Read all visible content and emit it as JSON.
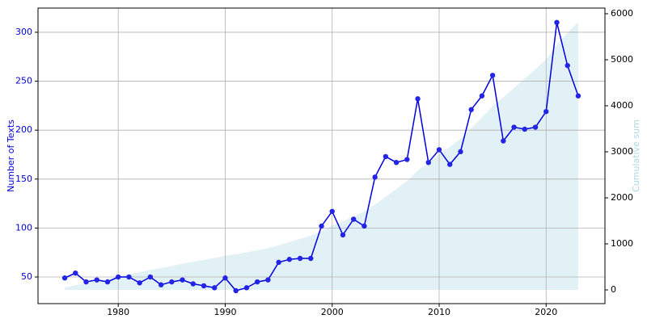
{
  "chart_data": {
    "type": "line",
    "ylabel": "Number of Texts",
    "y2label": "Cumulative sum",
    "x": [
      1975,
      1976,
      1977,
      1978,
      1979,
      1980,
      1981,
      1982,
      1983,
      1984,
      1985,
      1986,
      1987,
      1988,
      1989,
      1990,
      1991,
      1992,
      1993,
      1994,
      1995,
      1996,
      1997,
      1998,
      1999,
      2000,
      2001,
      2002,
      2003,
      2004,
      2005,
      2006,
      2007,
      2008,
      2009,
      2010,
      2011,
      2012,
      2013,
      2014,
      2015,
      2016,
      2017,
      2018,
      2019,
      2020,
      2021,
      2022,
      2023
    ],
    "series": [
      {
        "type": "area",
        "axis": "y2",
        "color": "#add8e6",
        "values": [
          49,
          103,
          148,
          195,
          240,
          290,
          340,
          384,
          434,
          476,
          521,
          568,
          611,
          652,
          691,
          740,
          776,
          815,
          860,
          907,
          972,
          1040,
          1109,
          1178,
          1280,
          1397,
          1490,
          1599,
          1701,
          1853,
          2026,
          2193,
          2363,
          2595,
          2762,
          2942,
          3107,
          3285,
          3506,
          3741,
          3997,
          4186,
          4389,
          4590,
          4793,
          5012,
          5322,
          5588,
          5823
        ]
      },
      {
        "type": "line",
        "color": "#0000dd",
        "marker_color": "#2424e6",
        "values": [
          49,
          54,
          45,
          47,
          45,
          50,
          50,
          44,
          50,
          42,
          45,
          47,
          43,
          41,
          39,
          49,
          36,
          39,
          45,
          47,
          65,
          68,
          69,
          69,
          102,
          117,
          93,
          109,
          102,
          152,
          173,
          167,
          170,
          232,
          167,
          180,
          165,
          178,
          221,
          235,
          256,
          189,
          203,
          201,
          203,
          219,
          310,
          266,
          235
        ]
      }
    ],
    "xlim": [
      1972.5,
      2025.5
    ],
    "xticks": [
      1980,
      1990,
      2000,
      2010,
      2020
    ],
    "ylim": [
      22.8,
      324.7
    ],
    "yticks": [
      50,
      100,
      150,
      200,
      250,
      300
    ],
    "y2lim": [
      -298,
      6123
    ],
    "y2ticks": [
      0,
      1000,
      2000,
      3000,
      4000,
      5000,
      6000
    ],
    "grid": true,
    "ylabel_color": "#0000dd",
    "y2label_color": "#add8e6"
  }
}
